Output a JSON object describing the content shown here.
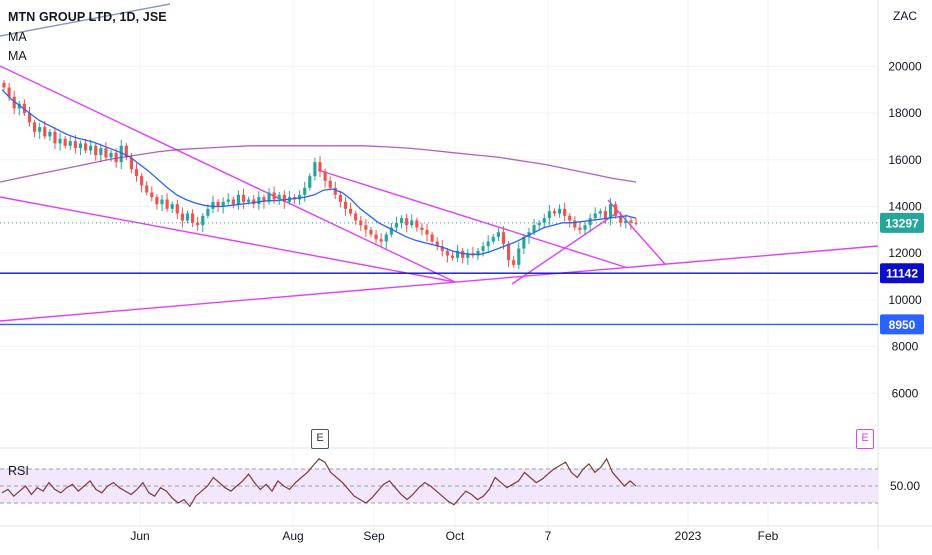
{
  "header": {
    "symbol_title": "MTN GROUP LTD, 1D, JSE",
    "indicator_1": "MA",
    "indicator_2": "MA",
    "rsi_label": "RSI",
    "currency": "ZAC",
    "event_marker_1": "E",
    "event_marker_2": "E"
  },
  "colors": {
    "up_candle": "#26a69a",
    "down_candle": "#ef5350",
    "ma_fast": "#2962ff",
    "ma_slow": "#9c27b0",
    "trendline": "#e040fb",
    "horizontal_level_1": "#0d0dc8",
    "horizontal_level_2": "#2962ff",
    "price_dotted": "#26a69a",
    "rsi_line": "#7e3b3b",
    "rsi_band": "#f3e8fb"
  },
  "chart_data": [
    {
      "type": "candlestick",
      "title": "MTN GROUP LTD, 1D, JSE",
      "ylabel": "ZAC",
      "ylim": [
        4000,
        22500
      ],
      "y_ticks": [
        20000,
        18000,
        16000,
        14000,
        12000,
        10000,
        8000,
        6000
      ],
      "x_tick_labels": [
        "Jun",
        "Aug",
        "Sep",
        "Oct",
        "7",
        "2023",
        "Feb"
      ],
      "price_labels": [
        {
          "value": 13297,
          "text": "13297"
        },
        {
          "value": 11142,
          "text": "11142"
        },
        {
          "value": 8950,
          "text": "8950"
        }
      ],
      "close_series": [
        19100,
        18700,
        18200,
        18400,
        18000,
        17600,
        17200,
        17400,
        17000,
        17200,
        16700,
        16900,
        16600,
        16800,
        16500,
        16700,
        16400,
        16600,
        16200,
        16500,
        16100,
        16300,
        15900,
        16600,
        16100,
        15600,
        15300,
        14900,
        14600,
        14400,
        14100,
        14300,
        13900,
        14100,
        13700,
        13400,
        13700,
        13300,
        13200,
        13600,
        13900,
        14200,
        14000,
        14200,
        14300,
        14100,
        14500,
        14200,
        14300,
        14100,
        14400,
        14200,
        14600,
        14300,
        14500,
        14200,
        14400,
        14300,
        14500,
        14800,
        15300,
        15900,
        15500,
        15100,
        14800,
        14500,
        14200,
        13900,
        13700,
        13400,
        13200,
        13000,
        12800,
        12600,
        12500,
        12800,
        13100,
        13300,
        13500,
        13200,
        13400,
        13100,
        13000,
        12800,
        12500,
        12300,
        12100,
        11900,
        11800,
        12100,
        11800,
        12000,
        11900,
        12100,
        12300,
        12500,
        12700,
        12900,
        12400,
        11700,
        11500,
        12200,
        12700,
        12900,
        13200,
        13300,
        13500,
        13800,
        13700,
        13900,
        13600,
        13400,
        13100,
        13000,
        13200,
        13500,
        13700,
        13800,
        13500,
        14100,
        13600,
        13300,
        13400,
        13300,
        13297
      ],
      "horizontal_levels": [
        11142,
        8950
      ],
      "series": [
        {
          "name": "MA",
          "type": "line",
          "values": [
            19000,
            18600,
            18300,
            18000,
            17700,
            17500,
            17300,
            17100,
            16950,
            16850,
            16750,
            16600,
            16450,
            16300,
            16100,
            15800,
            15500,
            15150,
            14800,
            14500,
            14300,
            14150,
            14050,
            14000,
            14000,
            14050,
            14100,
            14150,
            14200,
            14250,
            14250,
            14300,
            14350,
            14400,
            14500,
            14700,
            14750,
            14600,
            14300,
            13900,
            13600,
            13300,
            13100,
            12900,
            12700,
            12550,
            12450,
            12350,
            12250,
            12100,
            12000,
            11950,
            11950,
            12050,
            12200,
            12350,
            12500,
            12700,
            12900,
            13100,
            13200,
            13300,
            13300,
            13350,
            13400,
            13450,
            13500,
            13550,
            13600,
            13500
          ]
        },
        {
          "name": "MA",
          "type": "line",
          "values": [
            15050,
            15250,
            15450,
            15650,
            15850,
            16050,
            16200,
            16350,
            16450,
            16500,
            16550,
            16600,
            16600,
            16600,
            16600,
            16600,
            16600,
            16550,
            16500,
            16400,
            16300,
            16200,
            16100,
            15950,
            15800,
            15600,
            15400,
            15200,
            15050
          ]
        }
      ]
    },
    {
      "type": "line",
      "title": "RSI",
      "ylim": [
        30,
        70
      ],
      "y_ticks_text": [
        "50.00"
      ],
      "bands": [
        40,
        60
      ],
      "values": [
        46,
        48,
        44,
        47,
        50,
        45,
        49,
        47,
        52,
        48,
        46,
        49,
        51,
        47,
        50,
        53,
        48,
        46,
        50,
        52,
        49,
        47,
        45,
        48,
        52,
        46,
        44,
        49,
        47,
        43,
        40,
        42,
        38,
        44,
        47,
        50,
        55,
        52,
        49,
        47,
        50,
        53,
        57,
        52,
        48,
        51,
        47,
        53,
        50,
        48,
        52,
        55,
        58,
        62,
        66,
        64,
        58,
        55,
        52,
        48,
        44,
        42,
        40,
        43,
        47,
        51,
        53,
        49,
        45,
        42,
        45,
        49,
        52,
        50,
        47,
        44,
        41,
        39,
        43,
        47,
        45,
        42,
        44,
        48,
        55,
        52,
        49,
        51,
        53,
        58,
        55,
        52,
        54,
        57,
        60,
        62,
        64,
        58,
        55,
        60,
        63,
        58,
        61,
        66,
        58,
        54,
        50,
        53,
        50
      ]
    }
  ]
}
